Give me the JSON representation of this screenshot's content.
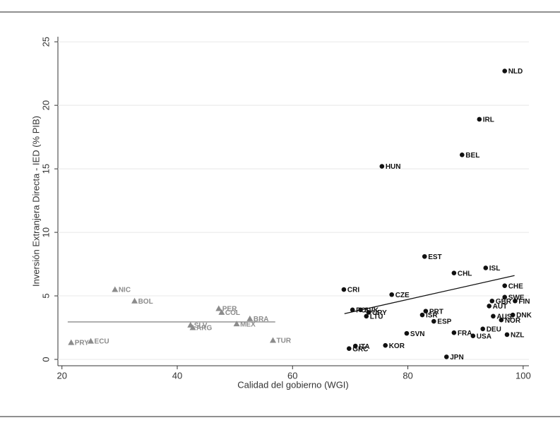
{
  "chart_data": {
    "type": "scatter",
    "x_label": "Calidad del gobierno (WGI)",
    "y_label": "Inversión Extranjera Directa - IED (% PIB)",
    "xlim": [
      19.3,
      101
    ],
    "ylim": [
      -0.5,
      25.4
    ],
    "xticks": [
      20,
      40,
      60,
      80,
      100
    ],
    "yticks": [
      0,
      5,
      10,
      15,
      20,
      25
    ],
    "grid": true,
    "series": [
      {
        "marker": "triangle",
        "color": "#8c8c8c",
        "labels": [
          "PRY",
          "ECU",
          "NIC",
          "BOL",
          "SLV",
          "ARG",
          "PER",
          "COL",
          "MEX",
          "BRA",
          "TUR"
        ],
        "x": [
          21.6,
          25.0,
          29.2,
          32.6,
          42.3,
          42.7,
          47.2,
          47.7,
          50.3,
          52.6,
          56.6
        ],
        "values": [
          1.33,
          1.44,
          5.5,
          4.6,
          2.7,
          2.5,
          4.0,
          3.7,
          2.8,
          3.2,
          1.5
        ]
      },
      {
        "marker": "circle",
        "color": "#111111",
        "labels": [
          "NLD",
          "IRL",
          "BEL",
          "HUN",
          "EST",
          "CHL",
          "ISL",
          "CHE",
          "CRI",
          "CZE",
          "SWE",
          "GBR",
          "FIN",
          "AUT",
          "POL",
          "SVK",
          "URY",
          "LTU",
          "PRT",
          "ISR",
          "ESP",
          "AUS",
          "DNK",
          "NOR",
          "DEU",
          "SVN",
          "FRA",
          "USA",
          "NZL",
          "KOR",
          "ITA",
          "GRC",
          "JPN"
        ],
        "x": [
          96.8,
          92.4,
          89.4,
          75.5,
          82.9,
          88.0,
          93.5,
          96.8,
          68.9,
          77.2,
          96.8,
          94.6,
          98.6,
          94.1,
          70.4,
          71.8,
          73.2,
          72.8,
          83.1,
          82.5,
          84.5,
          94.8,
          98.2,
          96.2,
          93.0,
          79.8,
          88.0,
          91.3,
          97.2,
          76.1,
          70.9,
          69.8,
          86.7
        ],
        "values": [
          22.7,
          18.9,
          16.1,
          15.2,
          8.1,
          6.8,
          7.2,
          5.8,
          5.5,
          5.1,
          4.9,
          4.6,
          4.6,
          4.2,
          3.9,
          3.9,
          3.7,
          3.4,
          3.8,
          3.5,
          3.0,
          3.4,
          3.5,
          3.1,
          2.4,
          2.05,
          2.1,
          1.85,
          1.95,
          1.1,
          1.05,
          0.85,
          0.2
        ]
      }
    ],
    "fit_lines": [
      {
        "color": "#8c8c8c",
        "x": [
          21,
          57
        ],
        "values": [
          2.95,
          2.95
        ]
      },
      {
        "color": "#111111",
        "x": [
          69,
          98.5
        ],
        "values": [
          3.6,
          6.6
        ]
      }
    ]
  }
}
